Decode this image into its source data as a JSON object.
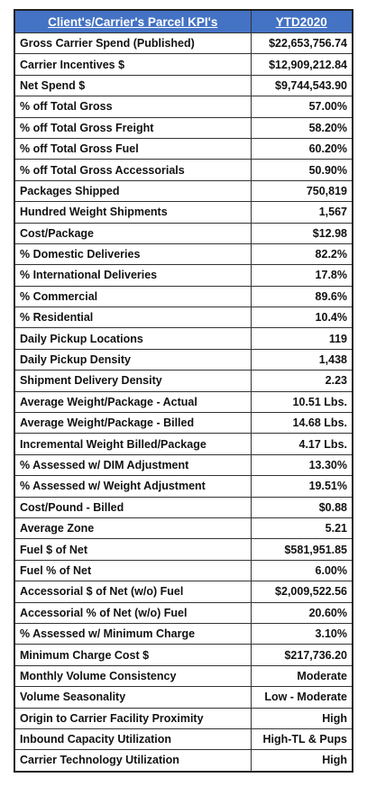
{
  "table": {
    "header": [
      "Client's/Carrier's Parcel KPI's",
      "YTD2020"
    ],
    "rows": [
      [
        "Gross Carrier Spend (Published)",
        "$22,653,756.74"
      ],
      [
        "Carrier Incentives $",
        "$12,909,212.84"
      ],
      [
        "Net Spend $",
        "$9,744,543.90"
      ],
      [
        "% off Total Gross",
        "57.00%"
      ],
      [
        "% off Total Gross Freight",
        "58.20%"
      ],
      [
        "% off Total Gross Fuel",
        "60.20%"
      ],
      [
        "% off Total Gross Accessorials",
        "50.90%"
      ],
      [
        "Packages Shipped",
        "750,819"
      ],
      [
        "Hundred Weight Shipments",
        "1,567"
      ],
      [
        "Cost/Package",
        "$12.98"
      ],
      [
        "% Domestic Deliveries",
        "82.2%"
      ],
      [
        "% International Deliveries",
        "17.8%"
      ],
      [
        "% Commercial",
        "89.6%"
      ],
      [
        "% Residential",
        "10.4%"
      ],
      [
        "Daily Pickup Locations",
        "119"
      ],
      [
        "Daily Pickup Density",
        "1,438"
      ],
      [
        "Shipment Delivery Density",
        "2.23"
      ],
      [
        "Average Weight/Package - Actual",
        "10.51 Lbs."
      ],
      [
        "Average Weight/Package - Billed",
        "14.68 Lbs."
      ],
      [
        "Incremental Weight Billed/Package",
        "4.17 Lbs."
      ],
      [
        "% Assessed w/ DIM Adjustment",
        "13.30%"
      ],
      [
        "% Assessed w/ Weight Adjustment",
        "19.51%"
      ],
      [
        "Cost/Pound - Billed",
        "$0.88"
      ],
      [
        "Average Zone",
        "5.21"
      ],
      [
        "Fuel $ of Net",
        "$581,951.85"
      ],
      [
        "Fuel % of Net",
        "6.00%"
      ],
      [
        "Accessorial $ of Net (w/o) Fuel",
        "$2,009,522.56"
      ],
      [
        "Accessorial % of Net (w/o) Fuel",
        "20.60%"
      ],
      [
        "% Assessed w/ Minimum Charge",
        "3.10%"
      ],
      [
        "Minimum Charge Cost $",
        "$217,736.20"
      ],
      [
        "Monthly Volume Consistency",
        "Moderate"
      ],
      [
        "Volume Seasonality",
        "Low - Moderate"
      ],
      [
        "Origin to Carrier Facility Proximity",
        "High"
      ],
      [
        "Inbound Capacity Utilization",
        "High-TL & Pups"
      ],
      [
        "Carrier Technology Utilization",
        "High"
      ]
    ]
  }
}
